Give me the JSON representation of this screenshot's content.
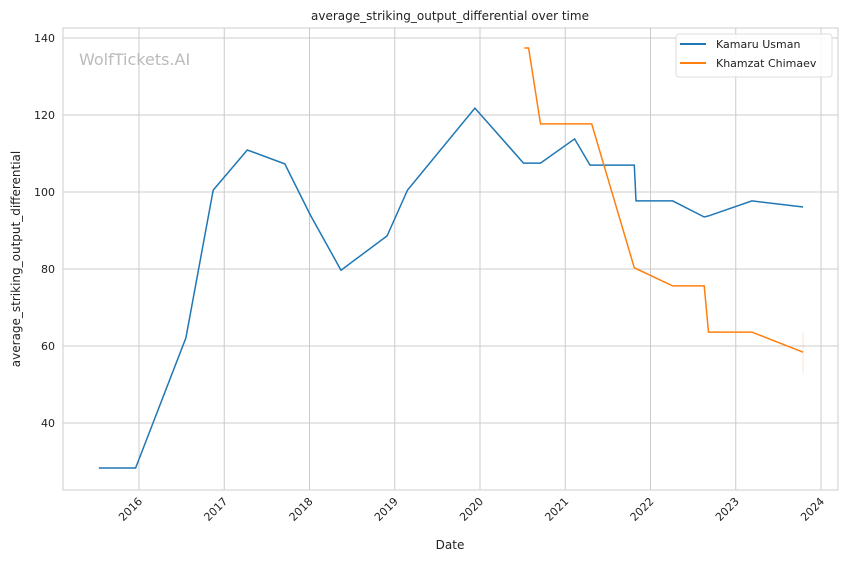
{
  "chart_data": {
    "type": "line",
    "title": "average_striking_output_differential over time",
    "xlabel": "Date",
    "ylabel": "average_striking_output_differential",
    "xlim": [
      2015.2,
      2024.2
    ],
    "ylim": [
      22.5,
      143
    ],
    "xticks": [
      2016,
      2017,
      2018,
      2019,
      2020,
      2021,
      2022,
      2023,
      2024
    ],
    "yticks": [
      40,
      60,
      80,
      100,
      120,
      140
    ],
    "grid": true,
    "legend_position": "top-right",
    "watermark": "WolfTickets.AI",
    "series": [
      {
        "name": "Kamaru Usman",
        "color": "#1f77b4",
        "x": [
          2015.53,
          2015.96,
          2016.55,
          2016.87,
          2017.27,
          2017.71,
          2018.01,
          2018.37,
          2018.91,
          2019.15,
          2019.94,
          2020.51,
          2020.71,
          2021.11,
          2021.29,
          2021.81,
          2021.83,
          2022.26,
          2022.63,
          2022.68,
          2023.19,
          2023.79
        ],
        "y": [
          28.3,
          28.3,
          62.1,
          100.5,
          110.9,
          107.3,
          94.0,
          79.7,
          88.6,
          100.5,
          121.8,
          107.5,
          107.5,
          113.8,
          107.0,
          107.0,
          97.7,
          97.7,
          93.5,
          93.8,
          97.7,
          96.1
        ]
      },
      {
        "name": "Khamzat Chimaev",
        "color": "#ff7f0e",
        "x": [
          2020.52,
          2020.57,
          2020.71,
          2021.31,
          2021.81,
          2022.26,
          2022.63,
          2022.68,
          2023.19,
          2023.79
        ],
        "y": [
          137.4,
          137.4,
          117.7,
          117.7,
          80.3,
          75.6,
          75.6,
          63.6,
          63.6,
          58.4
        ],
        "ci_last": [
          53.0,
          63.6
        ]
      }
    ]
  }
}
